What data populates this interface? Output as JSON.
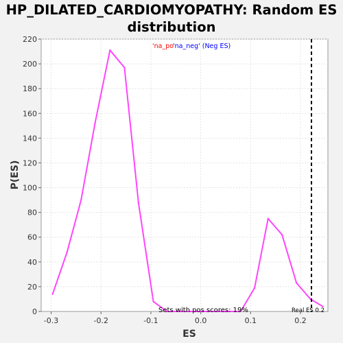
{
  "chart_data": {
    "type": "line",
    "title": [
      "HP_DILATED_CARDIOMYOPATHY: Random ES",
      "distribution"
    ],
    "xlabel": "ES",
    "ylabel": "P(ES)",
    "xlim": [
      -0.32,
      0.255
    ],
    "ylim": [
      0,
      220
    ],
    "x_ticks": [
      -0.3,
      -0.2,
      -0.1,
      0.0,
      0.1,
      0.2
    ],
    "x_tick_labels": [
      "-0.3",
      "-0.2",
      "-0.1",
      "0.0",
      "0.1",
      "0.2"
    ],
    "y_ticks": [
      0,
      20,
      40,
      60,
      80,
      100,
      120,
      140,
      160,
      180,
      200,
      220
    ],
    "grid": true,
    "series": [
      {
        "color": "#ff44ff",
        "x": [
          -0.297,
          -0.268,
          -0.24,
          -0.212,
          -0.182,
          -0.153,
          -0.125,
          -0.095,
          -0.068,
          0.08,
          0.108,
          0.135,
          0.163,
          0.192,
          0.22,
          0.245
        ],
        "y": [
          14,
          48,
          90,
          152,
          211,
          197,
          88,
          8,
          0,
          0,
          19,
          75,
          62,
          23,
          10,
          4
        ]
      }
    ],
    "real_es": 0.222,
    "legend": {
      "pos_label": "'na_po",
      "neg_label": "'na_neg' (Neg ES)",
      "pos_color": "#ff0000",
      "neg_color": "#0000ff"
    },
    "annotations": {
      "sets_pos": "Sets with pos scores: 19%",
      "real_es": "Real ES 0.2"
    }
  }
}
